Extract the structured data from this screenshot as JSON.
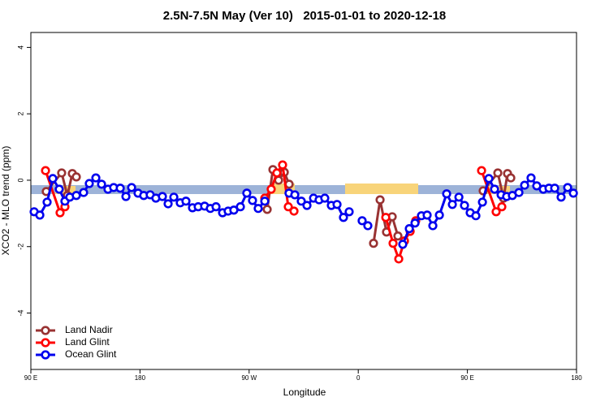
{
  "chart_data": {
    "type": "line",
    "title": "2.5N-7.5N May (Ver 10)   2015-01-01 to 2020-12-18",
    "x_label": "Longitude",
    "y_label": "XCO2 - MLO trend (ppm)",
    "xlim": [
      90,
      540
    ],
    "xticks": [
      {
        "value": 90,
        "label": "90 E"
      },
      {
        "value": 180,
        "label": "180"
      },
      {
        "value": 270,
        "label": "90 W"
      },
      {
        "value": 360,
        "label": "0"
      },
      {
        "value": 450,
        "label": "90 E"
      },
      {
        "value": 540,
        "label": "180"
      }
    ],
    "ylim": [
      -5.7,
      4.45
    ],
    "yticks": [
      -4,
      -2,
      0,
      2,
      4
    ],
    "legend": "lower left",
    "series": [
      {
        "name": "Land Nadir",
        "color": "#993333",
        "x": [
          102.7,
          115.4,
          120.1,
          124.2,
          127.5,
          null,
          284.9,
          289.6,
          294.3,
          299.0,
          303.0,
          null,
          372.6,
          378.0,
          383.3,
          388.0,
          392.7,
          null,
          463.0,
          475.1,
          479.8,
          483.1,
          485.8
        ],
        "values": [
          -0.34,
          0.22,
          -0.46,
          0.2,
          0.1,
          null,
          -0.88,
          0.32,
          0.0,
          0.24,
          -0.12,
          null,
          -1.9,
          -0.59,
          -1.56,
          -1.1,
          -1.68,
          null,
          -0.32,
          0.22,
          -0.54,
          0.2,
          0.07
        ]
      },
      {
        "name": "Land Glint",
        "color": "#ff0000",
        "x": [
          102.1,
          114.1,
          118.1,
          null,
          282.9,
          288.2,
          292.9,
          297.6,
          302.3,
          307.0,
          null,
          382.7,
          388.7,
          393.4,
          398.1,
          402.8,
          407.4,
          null,
          461.7,
          473.7,
          478.4
        ],
        "values": [
          0.29,
          -0.98,
          -0.8,
          null,
          -0.54,
          -0.27,
          0.22,
          0.46,
          -0.8,
          -0.93,
          null,
          -1.12,
          -1.9,
          -2.37,
          -1.83,
          -1.54,
          -1.22,
          null,
          0.29,
          -0.95,
          -0.8
        ]
      },
      {
        "name": "Ocean Glint",
        "color": "#0000ee",
        "x": [
          92.7,
          97.4,
          103.4,
          108.1,
          113.4,
          118.1,
          122.1,
          127.5,
          133.5,
          138.2,
          143.6,
          148.3,
          153.6,
          158.3,
          163.7,
          168.4,
          173.1,
          178.4,
          183.1,
          188.4,
          193.1,
          198.5,
          203.2,
          207.9,
          213.2,
          217.9,
          223.3,
          228.0,
          233.3,
          238.0,
          242.7,
          248.1,
          252.7,
          257.4,
          262.8,
          268.1,
          272.8,
          277.5,
          282.9,
          null,
          302.9,
          307.7,
          313.0,
          317.7,
          323.1,
          327.7,
          332.4,
          337.8,
          342.5,
          347.8,
          352.5,
          null,
          363.2,
          367.9,
          null,
          396.7,
          402.1,
          406.8,
          412.1,
          416.8,
          421.5,
          426.9,
          432.9,
          437.6,
          443.0,
          447.6,
          452.3,
          457.0,
          462.4,
          467.7,
          472.4,
          477.8,
          482.4,
          487.1,
          492.5,
          497.2,
          502.5,
          507.2,
          512.6,
          517.3,
          522.0,
          527.3,
          532.7,
          537.4
        ],
        "values": [
          -0.95,
          -1.05,
          -0.66,
          0.05,
          -0.27,
          -0.63,
          -0.51,
          -0.46,
          -0.37,
          -0.1,
          0.07,
          -0.12,
          -0.27,
          -0.22,
          -0.24,
          -0.49,
          -0.22,
          -0.39,
          -0.46,
          -0.44,
          -0.54,
          -0.49,
          -0.71,
          -0.51,
          -0.68,
          -0.63,
          -0.83,
          -0.8,
          -0.78,
          -0.85,
          -0.8,
          -0.98,
          -0.93,
          -0.9,
          -0.8,
          -0.39,
          -0.61,
          -0.85,
          -0.63,
          null,
          -0.39,
          -0.44,
          -0.63,
          -0.76,
          -0.54,
          -0.59,
          -0.54,
          -0.76,
          -0.73,
          -1.12,
          -0.95,
          null,
          -1.22,
          -1.37,
          null,
          -1.93,
          -1.46,
          -1.29,
          -1.07,
          -1.05,
          -1.37,
          -1.05,
          -0.41,
          -0.73,
          -0.51,
          -0.76,
          -0.98,
          -1.07,
          -0.66,
          0.05,
          -0.27,
          -0.44,
          -0.49,
          -0.46,
          -0.37,
          -0.15,
          0.07,
          -0.17,
          -0.27,
          -0.24,
          -0.24,
          -0.51,
          -0.22,
          -0.39
        ]
      }
    ]
  }
}
